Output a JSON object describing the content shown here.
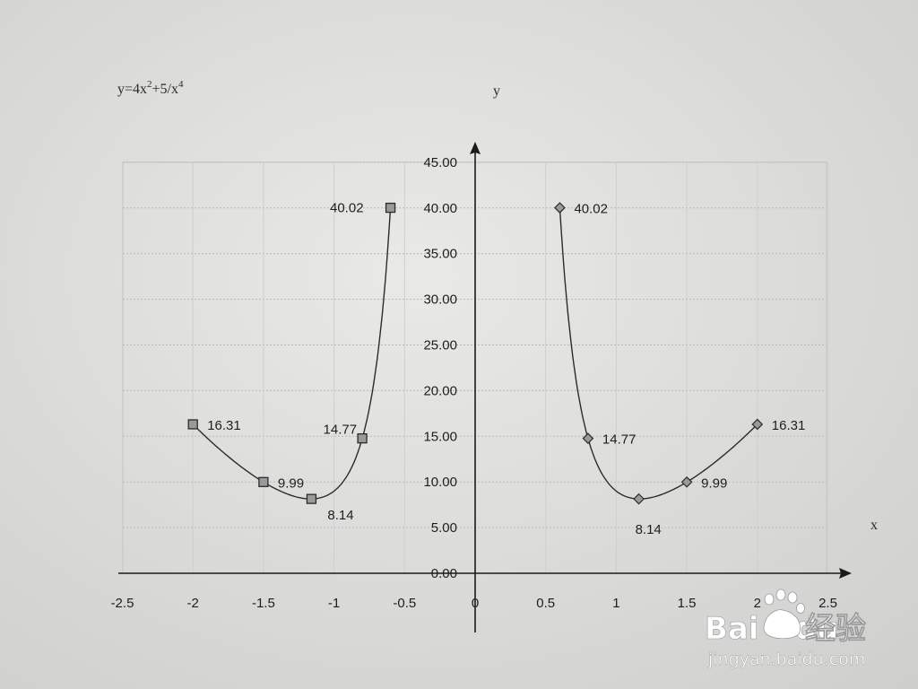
{
  "equation": {
    "prefix": "y=4x",
    "exp1": "2",
    "mid": "+5/x",
    "exp2": "4"
  },
  "watermark": {
    "logo": "Bai",
    "logo_suffix": "du",
    "cn": "经验",
    "url": "jingyan.baidu.com"
  },
  "chart_data": {
    "type": "scatter",
    "title": "",
    "xlabel": "x",
    "ylabel": "y",
    "xlim": [
      -2.5,
      2.5
    ],
    "ylim": [
      0,
      45
    ],
    "x_ticks": [
      "-2.5",
      "-2",
      "-1.5",
      "-1",
      "-0.5",
      "0",
      "0.5",
      "1",
      "1.5",
      "2",
      "2.5"
    ],
    "y_ticks": [
      "0.00",
      "5.00",
      "10.00",
      "15.00",
      "20.00",
      "25.00",
      "30.00",
      "35.00",
      "40.00",
      "45.00"
    ],
    "grid": true,
    "series": [
      {
        "marker": "square",
        "color": "#444444",
        "points": [
          {
            "x": -2,
            "y": 16.31,
            "label": "16.31"
          },
          {
            "x": -1.5,
            "y": 9.99,
            "label": "9.99"
          },
          {
            "x": -1.16,
            "y": 8.14,
            "label": "8.14"
          },
          {
            "x": -0.8,
            "y": 14.77,
            "label": "14.77"
          },
          {
            "x": -0.6,
            "y": 40.02,
            "label": "40.02"
          }
        ]
      },
      {
        "marker": "diamond",
        "color": "#444444",
        "points": [
          {
            "x": 0.6,
            "y": 40.02,
            "label": "40.02"
          },
          {
            "x": 0.8,
            "y": 14.77,
            "label": "14.77"
          },
          {
            "x": 1.16,
            "y": 8.14,
            "label": "8.14"
          },
          {
            "x": 1.5,
            "y": 9.99,
            "label": "9.99"
          },
          {
            "x": 2,
            "y": 16.31,
            "label": "16.31"
          }
        ]
      }
    ]
  }
}
